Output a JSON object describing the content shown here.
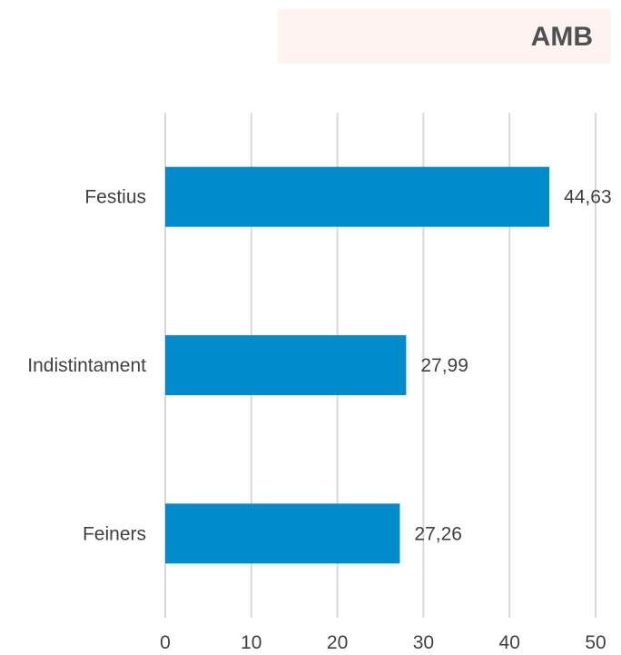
{
  "header": {
    "title": "AMB"
  },
  "colors": {
    "bar": "#008ccc",
    "grid": "#d9d9d9",
    "title_bg": "#fdf4f1"
  },
  "chart_data": {
    "type": "bar",
    "orientation": "horizontal",
    "title": "AMB",
    "categories": [
      "Festius",
      "Indistintament",
      "Feiners"
    ],
    "values": [
      44.63,
      27.99,
      27.26
    ],
    "data_labels": [
      "44,63",
      "27,99",
      "27,26"
    ],
    "x_ticks": [
      0,
      10,
      20,
      30,
      40,
      50
    ],
    "xlim": [
      0,
      50
    ],
    "grid": "vertical",
    "legend": "none",
    "xlabel": "",
    "ylabel": ""
  }
}
